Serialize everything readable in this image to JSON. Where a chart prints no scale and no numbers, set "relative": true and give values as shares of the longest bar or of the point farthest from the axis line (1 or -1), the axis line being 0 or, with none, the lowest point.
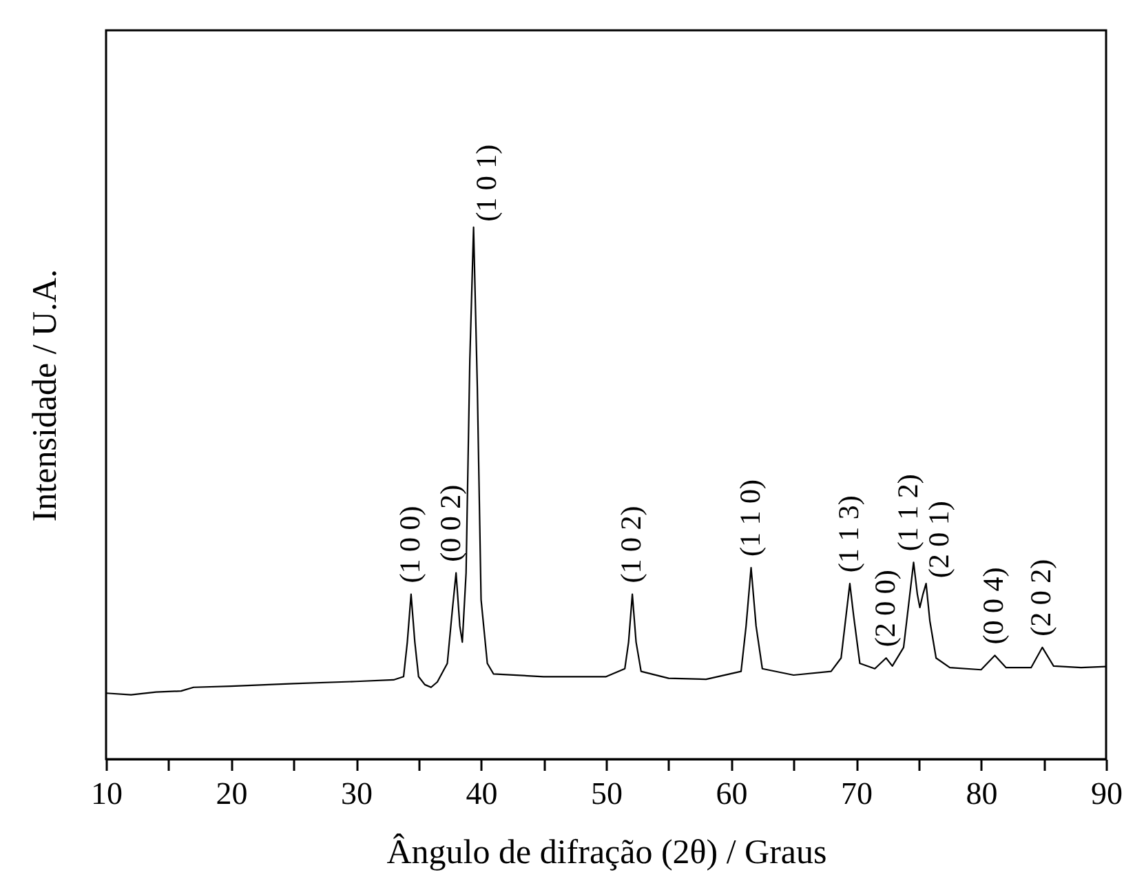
{
  "chart_data": {
    "type": "line",
    "relative": true,
    "xlabel": "Ângulo de difração (2θ) / Graus",
    "ylabel": "Intensidade / U.A.",
    "xlim": [
      10,
      90
    ],
    "xticks": [
      10,
      {
        "value": 15,
        "label": null
      },
      20,
      {
        "value": 25,
        "label": null
      },
      30,
      {
        "value": 35,
        "label": null
      },
      40,
      {
        "value": 45,
        "label": null
      },
      50,
      {
        "value": 55,
        "label": null
      },
      60,
      {
        "value": 65,
        "label": null
      },
      70,
      {
        "value": 75,
        "label": null
      },
      80,
      {
        "value": 85,
        "label": null
      },
      90
    ],
    "grid": false,
    "x": [
      10,
      12,
      14,
      16,
      17,
      20,
      25,
      30,
      33,
      33.8,
      34.1,
      34.4,
      34.7,
      35,
      35.5,
      36,
      36.5,
      37.3,
      37.7,
      38,
      38.3,
      38.5,
      38.8,
      39.1,
      39.4,
      39.7,
      40,
      40.5,
      41,
      45,
      50,
      51.5,
      51.8,
      52.1,
      52.4,
      52.8,
      55,
      58,
      60.8,
      61.2,
      61.6,
      62,
      62.5,
      65,
      68,
      68.8,
      69.2,
      69.5,
      69.8,
      70.3,
      71.5,
      72.4,
      72.9,
      73.8,
      74.2,
      74.6,
      74.9,
      75.1,
      75.35,
      75.6,
      75.9,
      76.4,
      77.5,
      80,
      81.1,
      82,
      84,
      84.9,
      85.8,
      88,
      90
    ],
    "series": [
      {
        "color": "#000000",
        "values": [
          0.124,
          0.121,
          0.126,
          0.128,
          0.135,
          0.137,
          0.142,
          0.146,
          0.149,
          0.155,
          0.22,
          0.31,
          0.22,
          0.155,
          0.14,
          0.135,
          0.145,
          0.18,
          0.28,
          0.35,
          0.25,
          0.22,
          0.35,
          0.75,
          1.0,
          0.7,
          0.3,
          0.18,
          0.16,
          0.155,
          0.155,
          0.17,
          0.22,
          0.31,
          0.22,
          0.165,
          0.152,
          0.15,
          0.165,
          0.25,
          0.36,
          0.25,
          0.17,
          0.158,
          0.165,
          0.19,
          0.27,
          0.33,
          0.27,
          0.18,
          0.17,
          0.19,
          0.175,
          0.21,
          0.29,
          0.37,
          0.31,
          0.285,
          0.31,
          0.33,
          0.26,
          0.19,
          0.172,
          0.168,
          0.195,
          0.172,
          0.172,
          0.21,
          0.175,
          0.172,
          0.174
        ]
      }
    ],
    "annotations": [
      {
        "text": "(1 0 0)",
        "x": 34.4,
        "y": 0.31
      },
      {
        "text": "(0 0 2)",
        "x": 38.0,
        "y": 0.35
      },
      {
        "text": "(1 0 1)",
        "x": 39.4,
        "y": 1.0
      },
      {
        "text": "(1 0 2)",
        "x": 52.1,
        "y": 0.31
      },
      {
        "text": "(1 1 0)",
        "x": 61.6,
        "y": 0.36
      },
      {
        "text": "(1 1 3)",
        "x": 69.5,
        "y": 0.33
      },
      {
        "text": "(2 0 0)",
        "x": 72.4,
        "y": 0.19
      },
      {
        "text": "(1 1 2)",
        "x": 74.6,
        "y": 0.37
      },
      {
        "text": "(2 0 1)",
        "x": 75.6,
        "y": 0.33
      },
      {
        "text": "(0 0 4)",
        "x": 81.1,
        "y": 0.195
      },
      {
        "text": "(2 0 2)",
        "x": 84.9,
        "y": 0.21
      }
    ]
  }
}
